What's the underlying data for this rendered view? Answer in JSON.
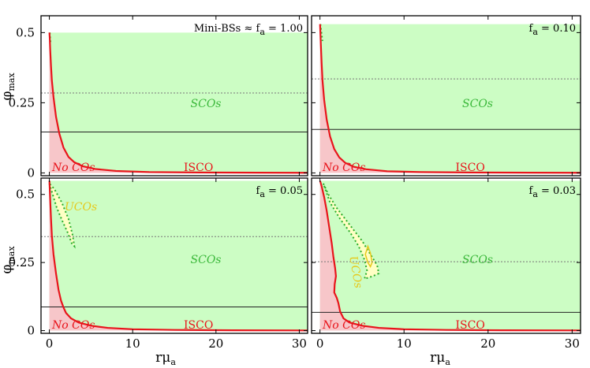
{
  "chart_data": {
    "type": "area",
    "ylabel": {
      "main": "φ",
      "sub": "max"
    },
    "xlabel": {
      "main": "rμ",
      "sub": "a"
    },
    "xlim": [
      -1,
      31
    ],
    "ylim": [
      -0.01,
      0.56
    ],
    "xticks": [
      0,
      10,
      20,
      30
    ],
    "yticks": [
      0,
      0.25,
      0.5
    ],
    "ytick_labels": [
      "0",
      "0.25",
      "0.5"
    ],
    "colors": {
      "sco_fill": "#ccfdc4",
      "noco_fill": "#f7c6c9",
      "uco_fill": "#ffffc4",
      "isco": "#e8141b",
      "sco_border": "#2aad2a",
      "uco_text": "#e6c81a"
    },
    "panels": [
      {
        "label_main": "Mini-BSs ≈ f",
        "label_sub": "a",
        "label_tail": " = 1.00",
        "ymax": 0.5,
        "dashed_line": 0.285,
        "solid_line": 0.146,
        "region_labels": {
          "sco": "SCOs",
          "noco": "No COs",
          "isco": "ISCO",
          "uco": ""
        },
        "isco_curve": [
          [
            0.01,
            0.5
          ],
          [
            0.05,
            0.48
          ],
          [
            0.1,
            0.44
          ],
          [
            0.2,
            0.38
          ],
          [
            0.3,
            0.33
          ],
          [
            0.5,
            0.27
          ],
          [
            0.8,
            0.2
          ],
          [
            1.2,
            0.14
          ],
          [
            1.7,
            0.09
          ],
          [
            2.3,
            0.057
          ],
          [
            3,
            0.038
          ],
          [
            4,
            0.024
          ],
          [
            5.5,
            0.014
          ],
          [
            8,
            0.007
          ],
          [
            12,
            0.003
          ],
          [
            18,
            0.0015
          ],
          [
            25,
            0.0008
          ],
          [
            31,
            0.0005
          ]
        ],
        "uco_outer": [],
        "uco_inner": [],
        "sco_border": [
          [
            0.05,
            0.5
          ],
          [
            0.15,
            0.46
          ]
        ]
      },
      {
        "label_main": "f",
        "label_sub": "a",
        "label_tail": " = 0.10",
        "ymax": 0.53,
        "dashed_line": 0.335,
        "solid_line": 0.155,
        "region_labels": {
          "sco": "SCOs",
          "noco": "No COs",
          "isco": "ISCO",
          "uco": ""
        },
        "isco_curve": [
          [
            0.01,
            0.53
          ],
          [
            0.05,
            0.5
          ],
          [
            0.1,
            0.46
          ],
          [
            0.2,
            0.39
          ],
          [
            0.3,
            0.33
          ],
          [
            0.5,
            0.26
          ],
          [
            0.8,
            0.19
          ],
          [
            1.2,
            0.13
          ],
          [
            1.7,
            0.085
          ],
          [
            2.3,
            0.055
          ],
          [
            3,
            0.036
          ],
          [
            4,
            0.022
          ],
          [
            5.5,
            0.013
          ],
          [
            8,
            0.006
          ],
          [
            12,
            0.003
          ],
          [
            18,
            0.0015
          ],
          [
            25,
            0.0008
          ],
          [
            31,
            0.0005
          ]
        ],
        "uco_outer": [],
        "uco_inner": [],
        "sco_border": [
          [
            0.05,
            0.53
          ],
          [
            0.3,
            0.47
          ]
        ]
      },
      {
        "label_main": "f",
        "label_sub": "a",
        "label_tail": " = 0.05",
        "ymax": 0.55,
        "dashed_line": 0.345,
        "solid_line": 0.087,
        "region_labels": {
          "sco": "SCOs",
          "noco": "No COs",
          "isco": "ISCO",
          "uco": "UCOs"
        },
        "isco_curve": [
          [
            0.01,
            0.55
          ],
          [
            0.05,
            0.52
          ],
          [
            0.1,
            0.48
          ],
          [
            0.2,
            0.41
          ],
          [
            0.3,
            0.35
          ],
          [
            0.5,
            0.28
          ],
          [
            0.8,
            0.21
          ],
          [
            1.1,
            0.15
          ],
          [
            1.4,
            0.11
          ],
          [
            1.7,
            0.085
          ],
          [
            2,
            0.065
          ],
          [
            2.6,
            0.045
          ],
          [
            3.5,
            0.03
          ],
          [
            5,
            0.018
          ],
          [
            7,
            0.01
          ],
          [
            10,
            0.005
          ],
          [
            15,
            0.0025
          ],
          [
            22,
            0.0012
          ],
          [
            31,
            0.0006
          ]
        ],
        "uco_outer": [
          [
            0,
            0.54
          ],
          [
            0.3,
            0.51
          ],
          [
            0.9,
            0.45
          ],
          [
            1.6,
            0.4
          ],
          [
            2.2,
            0.36
          ],
          [
            2.7,
            0.32
          ],
          [
            3.0,
            0.31
          ],
          [
            2.8,
            0.35
          ],
          [
            2.3,
            0.41
          ],
          [
            1.5,
            0.47
          ],
          [
            0.6,
            0.52
          ],
          [
            0,
            0.54
          ]
        ],
        "uco_inner": [],
        "sco_border": []
      },
      {
        "label_main": "f",
        "label_sub": "a",
        "label_tail": " = 0.03",
        "ymax": 0.55,
        "dashed_line": 0.253,
        "solid_line": 0.067,
        "region_labels": {
          "sco": "SCOs",
          "noco": "No COs",
          "isco": "ISCO",
          "uco": "UCOs"
        },
        "isco_curve": [
          [
            0.01,
            0.55
          ],
          [
            0.2,
            0.53
          ],
          [
            0.5,
            0.49
          ],
          [
            0.8,
            0.44
          ],
          [
            1.1,
            0.38
          ],
          [
            1.4,
            0.32
          ],
          [
            1.6,
            0.27
          ],
          [
            1.8,
            0.23
          ],
          [
            1.9,
            0.2
          ],
          [
            1.75,
            0.17
          ],
          [
            1.7,
            0.14
          ],
          [
            2.0,
            0.12
          ],
          [
            2.2,
            0.1
          ],
          [
            2.4,
            0.07
          ],
          [
            2.8,
            0.045
          ],
          [
            3.5,
            0.03
          ],
          [
            5,
            0.018
          ],
          [
            7,
            0.01
          ],
          [
            10,
            0.005
          ],
          [
            15,
            0.0025
          ],
          [
            22,
            0.0012
          ],
          [
            31,
            0.0006
          ]
        ],
        "uco_outer": [
          [
            0.4,
            0.54
          ],
          [
            1.0,
            0.5
          ],
          [
            2.0,
            0.45
          ],
          [
            3.5,
            0.39
          ],
          [
            5.0,
            0.33
          ],
          [
            6.0,
            0.28
          ],
          [
            6.8,
            0.24
          ],
          [
            7.0,
            0.21
          ],
          [
            6.3,
            0.2
          ],
          [
            5.3,
            0.19
          ],
          [
            5.6,
            0.22
          ],
          [
            5.3,
            0.26
          ],
          [
            4.6,
            0.31
          ],
          [
            3.6,
            0.36
          ],
          [
            2.4,
            0.41
          ],
          [
            1.2,
            0.47
          ],
          [
            0.4,
            0.54
          ]
        ],
        "uco_inner": [
          [
            5.4,
            0.28
          ],
          [
            5.7,
            0.31
          ],
          [
            6.0,
            0.285
          ],
          [
            6.2,
            0.25
          ],
          [
            6.0,
            0.235
          ],
          [
            5.7,
            0.25
          ],
          [
            5.4,
            0.28
          ]
        ],
        "sco_border": []
      }
    ]
  }
}
